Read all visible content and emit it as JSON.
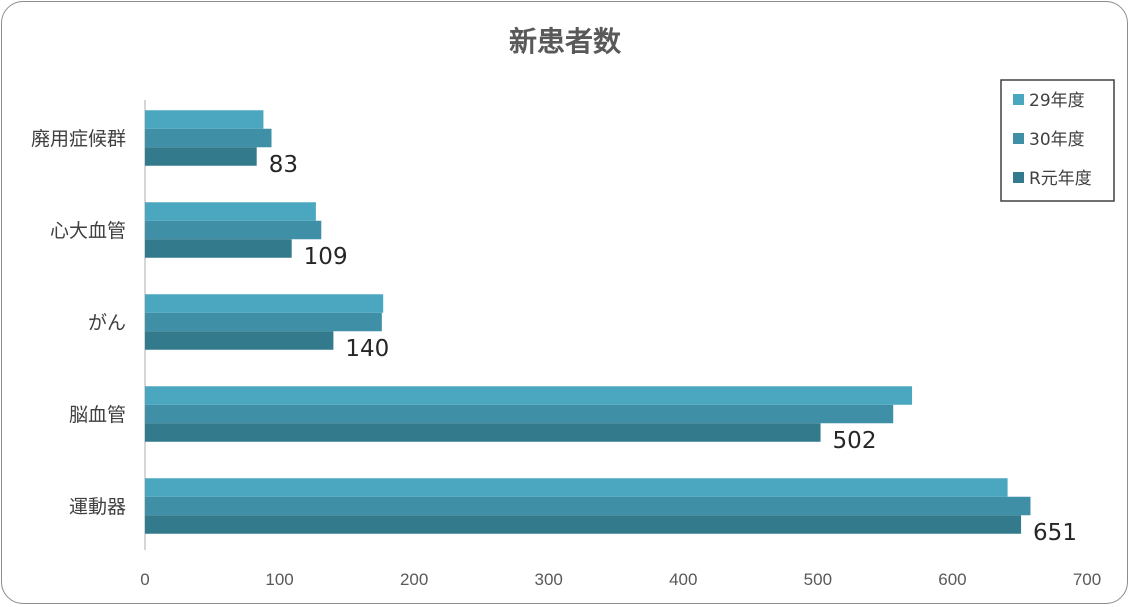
{
  "chart_data": {
    "type": "bar",
    "orientation": "horizontal",
    "title": "新患者数",
    "categories": [
      "廃用症候群",
      "心大血管",
      "がん",
      "脳血管",
      "運動器"
    ],
    "series": [
      {
        "name": "29年度",
        "color": "#4ba7bf",
        "values": [
          88,
          127,
          177,
          570,
          641
        ]
      },
      {
        "name": "30年度",
        "color": "#3f8fa6",
        "values": [
          94,
          131,
          176,
          556,
          658
        ]
      },
      {
        "name": "R元年度",
        "color": "#327a8c",
        "values": [
          83,
          109,
          140,
          502,
          651
        ]
      }
    ],
    "data_labels_series": "R元年度",
    "xlim": [
      0,
      700
    ],
    "xticks": [
      0,
      100,
      200,
      300,
      400,
      500,
      600,
      700
    ],
    "grid": false,
    "legend_position": "top-right"
  }
}
